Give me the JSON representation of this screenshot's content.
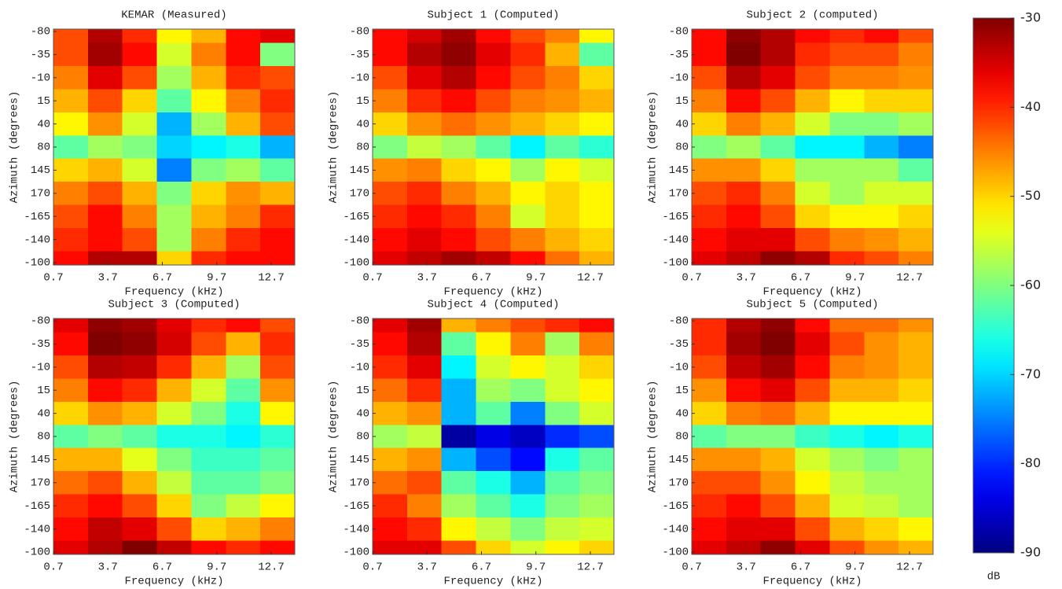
{
  "chart_data": [
    {
      "type": "heatmap",
      "title": "KEMAR (Measured)",
      "xlabel": "Frequency (kHz)",
      "ylabel": "Azimuth (degrees)",
      "x": [
        1.65,
        3.55,
        5.45,
        7.35,
        9.25,
        11.15,
        13.05
      ],
      "xlim": [
        0.7,
        14.0
      ],
      "xticks": [
        0.7,
        3.7,
        6.7,
        9.7,
        12.7
      ],
      "y_categories": [
        -80,
        -35,
        -10,
        15,
        40,
        80,
        145,
        170,
        -165,
        -140,
        -100
      ],
      "values": [
        [
          -42,
          -33,
          -40,
          -52,
          -48,
          -38,
          -36
        ],
        [
          -42,
          -32,
          -38,
          -55,
          -45,
          -38,
          -60
        ],
        [
          -45,
          -36,
          -42,
          -58,
          -48,
          -40,
          -42
        ],
        [
          -48,
          -42,
          -50,
          -62,
          -52,
          -45,
          -40
        ],
        [
          -52,
          -46,
          -55,
          -72,
          -58,
          -48,
          -42
        ],
        [
          -62,
          -58,
          -60,
          -70,
          -68,
          -66,
          -72
        ],
        [
          -50,
          -48,
          -55,
          -75,
          -60,
          -58,
          -62
        ],
        [
          -45,
          -42,
          -48,
          -60,
          -50,
          -46,
          -48
        ],
        [
          -42,
          -38,
          -45,
          -58,
          -48,
          -45,
          -40
        ],
        [
          -40,
          -38,
          -42,
          -58,
          -45,
          -40,
          -38
        ],
        [
          -38,
          -33,
          -33,
          -50,
          -40,
          -38,
          -38
        ]
      ]
    },
    {
      "type": "heatmap",
      "title": "Subject 1 (Computed)",
      "xlabel": "Frequency (kHz)",
      "ylabel": "Azimuth (degrees)",
      "x": [
        1.65,
        3.55,
        5.45,
        7.35,
        9.25,
        11.15,
        13.05
      ],
      "xlim": [
        0.7,
        14.0
      ],
      "xticks": [
        0.7,
        3.7,
        6.7,
        9.7,
        12.7
      ],
      "y_categories": [
        -80,
        -35,
        -10,
        15,
        40,
        80,
        145,
        170,
        -165,
        -140,
        -100
      ],
      "values": [
        [
          -38,
          -35,
          -32,
          -38,
          -42,
          -45,
          -52
        ],
        [
          -38,
          -33,
          -31,
          -36,
          -40,
          -48,
          -62
        ],
        [
          -42,
          -36,
          -33,
          -38,
          -42,
          -45,
          -50
        ],
        [
          -45,
          -40,
          -38,
          -42,
          -45,
          -46,
          -48
        ],
        [
          -50,
          -46,
          -44,
          -46,
          -48,
          -50,
          -52
        ],
        [
          -60,
          -56,
          -58,
          -62,
          -68,
          -62,
          -65
        ],
        [
          -46,
          -45,
          -50,
          -52,
          -58,
          -52,
          -55
        ],
        [
          -42,
          -40,
          -45,
          -48,
          -52,
          -50,
          -52
        ],
        [
          -40,
          -38,
          -40,
          -45,
          -55,
          -50,
          -52
        ],
        [
          -38,
          -36,
          -38,
          -42,
          -45,
          -48,
          -50
        ],
        [
          -36,
          -34,
          -32,
          -34,
          -38,
          -44,
          -48
        ]
      ]
    },
    {
      "type": "heatmap",
      "title": "Subject 2 (computed)",
      "xlabel": "Frequency (kHz)",
      "ylabel": "Azimuth (degrees)",
      "x": [
        1.65,
        3.55,
        5.45,
        7.35,
        9.25,
        11.15,
        13.05
      ],
      "xlim": [
        0.7,
        14.0
      ],
      "xticks": [
        0.7,
        3.7,
        6.7,
        9.7,
        12.7
      ],
      "y_categories": [
        -80,
        -35,
        -10,
        15,
        40,
        80,
        145,
        170,
        -165,
        -140,
        -100
      ],
      "values": [
        [
          -38,
          -31,
          -33,
          -38,
          -40,
          -38,
          -42
        ],
        [
          -38,
          -30,
          -33,
          -40,
          -42,
          -42,
          -45
        ],
        [
          -42,
          -33,
          -36,
          -42,
          -45,
          -45,
          -46
        ],
        [
          -45,
          -38,
          -42,
          -48,
          -52,
          -50,
          -50
        ],
        [
          -50,
          -45,
          -48,
          -55,
          -60,
          -60,
          -58
        ],
        [
          -60,
          -58,
          -62,
          -68,
          -68,
          -72,
          -75
        ],
        [
          -46,
          -46,
          -50,
          -58,
          -58,
          -58,
          -62
        ],
        [
          -42,
          -40,
          -45,
          -55,
          -58,
          -55,
          -55
        ],
        [
          -40,
          -38,
          -42,
          -50,
          -52,
          -52,
          -50
        ],
        [
          -38,
          -36,
          -36,
          -42,
          -45,
          -46,
          -48
        ],
        [
          -36,
          -34,
          -31,
          -33,
          -40,
          -42,
          -45
        ]
      ]
    },
    {
      "type": "heatmap",
      "title": "Subject 3 (Computed)",
      "xlabel": "Frequency (kHz)",
      "ylabel": "Azimuth (degrees)",
      "x": [
        1.65,
        3.55,
        5.45,
        7.35,
        9.25,
        11.15,
        13.05
      ],
      "xlim": [
        0.7,
        14.0
      ],
      "xticks": [
        0.7,
        3.7,
        6.7,
        9.7,
        12.7
      ],
      "y_categories": [
        -80,
        -35,
        -10,
        15,
        40,
        80,
        145,
        170,
        -165,
        -140,
        -100
      ],
      "values": [
        [
          -36,
          -31,
          -32,
          -36,
          -40,
          -38,
          -42
        ],
        [
          -38,
          -30,
          -31,
          -35,
          -42,
          -48,
          -40
        ],
        [
          -42,
          -33,
          -34,
          -40,
          -48,
          -58,
          -42
        ],
        [
          -45,
          -38,
          -40,
          -48,
          -55,
          -62,
          -46
        ],
        [
          -50,
          -46,
          -48,
          -55,
          -60,
          -66,
          -52
        ],
        [
          -62,
          -60,
          -62,
          -66,
          -66,
          -68,
          -65
        ],
        [
          -48,
          -48,
          -54,
          -60,
          -64,
          -64,
          -62
        ],
        [
          -44,
          -42,
          -48,
          -56,
          -62,
          -62,
          -60
        ],
        [
          -40,
          -38,
          -42,
          -50,
          -60,
          -56,
          -52
        ],
        [
          -38,
          -34,
          -36,
          -42,
          -50,
          -48,
          -45
        ],
        [
          -36,
          -33,
          -30,
          -34,
          -38,
          -40,
          -38
        ]
      ]
    },
    {
      "type": "heatmap",
      "title": "Subject 4 (Computed)",
      "xlabel": "Frequency (kHz)",
      "ylabel": "Azimuth (degrees)",
      "x": [
        1.65,
        3.55,
        5.45,
        7.35,
        9.25,
        11.15,
        13.05
      ],
      "xlim": [
        0.7,
        14.0
      ],
      "xticks": [
        0.7,
        3.7,
        6.7,
        9.7,
        12.7
      ],
      "y_categories": [
        -80,
        -35,
        -10,
        15,
        40,
        80,
        145,
        170,
        -165,
        -140,
        -100
      ],
      "values": [
        [
          -36,
          -32,
          -48,
          -45,
          -42,
          -40,
          -38
        ],
        [
          -38,
          -33,
          -62,
          -52,
          -45,
          -58,
          -45
        ],
        [
          -40,
          -36,
          -68,
          -55,
          -52,
          -55,
          -50
        ],
        [
          -44,
          -40,
          -72,
          -58,
          -60,
          -55,
          -52
        ],
        [
          -48,
          -46,
          -72,
          -62,
          -75,
          -60,
          -55
        ],
        [
          -58,
          -56,
          -88,
          -84,
          -86,
          -80,
          -78
        ],
        [
          -48,
          -46,
          -72,
          -78,
          -82,
          -66,
          -62
        ],
        [
          -44,
          -42,
          -62,
          -66,
          -72,
          -62,
          -60
        ],
        [
          -40,
          -45,
          -58,
          -62,
          -66,
          -60,
          -58
        ],
        [
          -38,
          -40,
          -52,
          -56,
          -60,
          -56,
          -55
        ],
        [
          -36,
          -36,
          -42,
          -50,
          -55,
          -52,
          -50
        ]
      ]
    },
    {
      "type": "heatmap",
      "title": "Subject 5 (Computed)",
      "xlabel": "Frequency (kHz)",
      "ylabel": "Azimuth (degrees)",
      "x": [
        1.65,
        3.55,
        5.45,
        7.35,
        9.25,
        11.15,
        13.05
      ],
      "xlim": [
        0.7,
        14.0
      ],
      "xticks": [
        0.7,
        3.7,
        6.7,
        9.7,
        12.7
      ],
      "y_categories": [
        -80,
        -35,
        -10,
        15,
        40,
        80,
        145,
        170,
        -165,
        -140,
        -100
      ],
      "values": [
        [
          -40,
          -33,
          -31,
          -38,
          -44,
          -44,
          -46
        ],
        [
          -40,
          -32,
          -30,
          -36,
          -42,
          -46,
          -48
        ],
        [
          -42,
          -34,
          -32,
          -38,
          -45,
          -46,
          -48
        ],
        [
          -46,
          -38,
          -36,
          -42,
          -48,
          -48,
          -50
        ],
        [
          -50,
          -45,
          -44,
          -48,
          -52,
          -52,
          -52
        ],
        [
          -62,
          -60,
          -60,
          -64,
          -66,
          -68,
          -66
        ],
        [
          -46,
          -46,
          -48,
          -55,
          -58,
          -60,
          -58
        ],
        [
          -42,
          -42,
          -46,
          -52,
          -56,
          -58,
          -58
        ],
        [
          -40,
          -38,
          -42,
          -48,
          -55,
          -56,
          -58
        ],
        [
          -38,
          -36,
          -36,
          -42,
          -48,
          -50,
          -52
        ],
        [
          -36,
          -34,
          -31,
          -36,
          -42,
          -46,
          -48
        ]
      ]
    }
  ],
  "colorbar": {
    "label": "dB",
    "colormap": "jet",
    "clim": [
      -90,
      -30
    ],
    "ticks": [
      -30,
      -40,
      -50,
      -60,
      -70,
      -80,
      -90
    ]
  }
}
